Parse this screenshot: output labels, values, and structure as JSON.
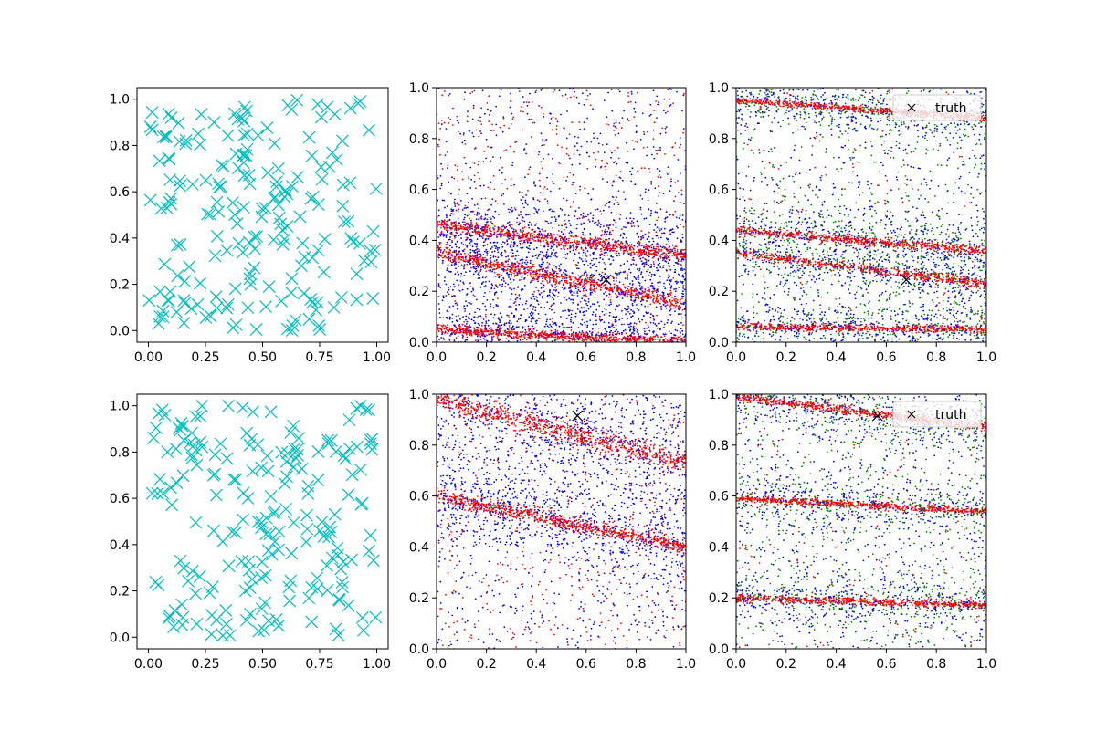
{
  "chart_data": [
    {
      "panel": "top-left",
      "type": "scatter",
      "xlim": [
        -0.05,
        1.05
      ],
      "ylim": [
        -0.05,
        1.05
      ],
      "xticks": [
        "0.00",
        "0.25",
        "0.50",
        "0.75",
        "1.00"
      ],
      "yticks": [
        "0.0",
        "0.2",
        "0.4",
        "0.6",
        "0.8",
        "1.0"
      ],
      "marker": "x",
      "color": "#00bfbf",
      "points_note": "uniform random positions",
      "seed": 11,
      "n_points": 200
    },
    {
      "panel": "top-middle",
      "type": "scatter",
      "xlim": [
        0,
        1
      ],
      "ylim": [
        0,
        1
      ],
      "xticks": [
        "0.0",
        "0.2",
        "0.4",
        "0.6",
        "0.8",
        "1.0"
      ],
      "yticks": [
        "0.0",
        "0.2",
        "0.4",
        "0.6",
        "0.8",
        "1.0"
      ],
      "colors": {
        "blue": "#0000ff",
        "red": "#ff0000"
      },
      "truth": [
        0.68,
        0.245
      ],
      "bands": [
        {
          "y0": 0.35,
          "slope": -0.2,
          "width": 0.04
        },
        {
          "y0": 0.05,
          "slope": -0.05,
          "width": 0.03
        },
        {
          "y0": 0.46,
          "slope": -0.12,
          "width": 0.04
        }
      ],
      "seed": 22
    },
    {
      "panel": "top-right",
      "type": "scatter",
      "xlim": [
        0,
        1
      ],
      "ylim": [
        0,
        1
      ],
      "xticks": [
        "0.0",
        "0.2",
        "0.4",
        "0.6",
        "0.8",
        "1.0"
      ],
      "yticks": [
        "0.0",
        "0.2",
        "0.4",
        "0.6",
        "0.8",
        "1.0"
      ],
      "colors": {
        "blue": "#0000ff",
        "red": "#ff0000",
        "green": "#008000"
      },
      "truth": [
        0.68,
        0.245
      ],
      "legend": "truth",
      "bands": [
        {
          "y0": 0.35,
          "slope": -0.12,
          "width": 0.025
        },
        {
          "y0": 0.44,
          "slope": -0.08,
          "width": 0.025
        },
        {
          "y0": 0.95,
          "slope": -0.07,
          "width": 0.02
        },
        {
          "y0": 0.06,
          "slope": -0.01,
          "width": 0.02
        }
      ],
      "seed": 33
    },
    {
      "panel": "bottom-left",
      "type": "scatter",
      "xlim": [
        -0.05,
        1.05
      ],
      "ylim": [
        -0.05,
        1.05
      ],
      "xticks": [
        "0.00",
        "0.25",
        "0.50",
        "0.75",
        "1.00"
      ],
      "yticks": [
        "0.0",
        "0.2",
        "0.4",
        "0.6",
        "0.8",
        "1.0"
      ],
      "marker": "x",
      "color": "#00bfbf",
      "points_note": "uniform random positions",
      "seed": 44,
      "n_points": 200
    },
    {
      "panel": "bottom-middle",
      "type": "scatter",
      "xlim": [
        0,
        1
      ],
      "ylim": [
        0,
        1
      ],
      "xticks": [
        "0.0",
        "0.2",
        "0.4",
        "0.6",
        "0.8",
        "1.0"
      ],
      "yticks": [
        "0.0",
        "0.2",
        "0.4",
        "0.6",
        "0.8",
        "1.0"
      ],
      "colors": {
        "blue": "#0000ff",
        "red": "#ff0000"
      },
      "truth": [
        0.565,
        0.915
      ],
      "bands": [
        {
          "y0": 0.6,
          "slope": -0.2,
          "width": 0.04
        },
        {
          "y0": 0.98,
          "slope": -0.25,
          "width": 0.06
        }
      ],
      "seed": 55
    },
    {
      "panel": "bottom-right",
      "type": "scatter",
      "xlim": [
        0,
        1
      ],
      "ylim": [
        0,
        1
      ],
      "xticks": [
        "0.0",
        "0.2",
        "0.4",
        "0.6",
        "0.8",
        "1.0"
      ],
      "yticks": [
        "0.0",
        "0.2",
        "0.4",
        "0.6",
        "0.8",
        "1.0"
      ],
      "colors": {
        "blue": "#0000ff",
        "red": "#ff0000",
        "green": "#008000"
      },
      "truth": [
        0.565,
        0.915
      ],
      "legend": "truth",
      "bands": [
        {
          "y0": 0.99,
          "slope": -0.12,
          "width": 0.025
        },
        {
          "y0": 0.59,
          "slope": -0.05,
          "width": 0.02
        },
        {
          "y0": 0.2,
          "slope": -0.03,
          "width": 0.02
        }
      ],
      "seed": 66
    }
  ]
}
